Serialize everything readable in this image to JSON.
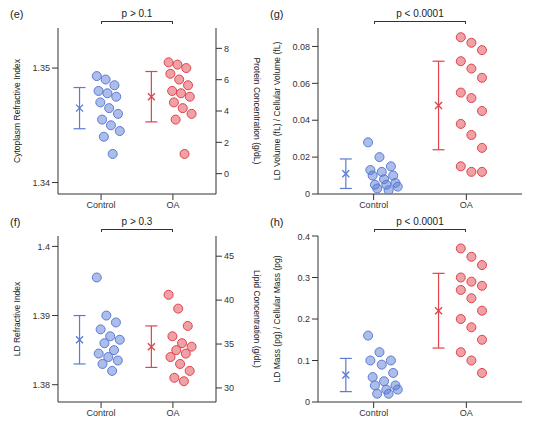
{
  "chart_data": [
    {
      "type": "scatter",
      "title": "(e)",
      "annotation": "p > 0.1",
      "categories": [
        "Control",
        "OA"
      ],
      "colors": [
        "#5b7bd5",
        "#e0434b"
      ],
      "values": [
        [
          1.3493,
          1.349,
          1.3485,
          1.348,
          1.3478,
          1.3475,
          1.347,
          1.3465,
          1.346,
          1.3455,
          1.345,
          1.3445,
          1.344,
          1.3425
        ],
        [
          1.3505,
          1.3503,
          1.35,
          1.3495,
          1.349,
          1.3485,
          1.348,
          1.3478,
          1.3475,
          1.347,
          1.3465,
          1.346,
          1.3455,
          1.3425
        ]
      ],
      "means": [
        1.3465,
        1.3475
      ],
      "errors": [
        0.0018,
        0.0022
      ],
      "ylabel": "Cytoplasm Refractive Index",
      "ylim": [
        1.339,
        1.3535
      ],
      "yticks": [
        1.34,
        1.35
      ],
      "y2label": "Protein Concentration (g/dL)",
      "y2lim": [
        -1.3,
        9.3
      ],
      "y2ticks": [
        0,
        2,
        4,
        6,
        8
      ]
    },
    {
      "type": "scatter",
      "title": "(g)",
      "annotation": "p < 0.0001",
      "categories": [
        "Control",
        "OA"
      ],
      "colors": [
        "#5b7bd5",
        "#e0434b"
      ],
      "values": [
        [
          0.028,
          0.02,
          0.015,
          0.013,
          0.012,
          0.01,
          0.01,
          0.008,
          0.006,
          0.005,
          0.005,
          0.004,
          0.003,
          0.002
        ],
        [
          0.085,
          0.082,
          0.078,
          0.072,
          0.068,
          0.063,
          0.055,
          0.052,
          0.045,
          0.038,
          0.032,
          0.025,
          0.015,
          0.012,
          0.012
        ]
      ],
      "means": [
        0.011,
        0.048
      ],
      "errors": [
        0.008,
        0.024
      ],
      "ylabel": "LD Volume (fL) / Cellular Volume (fL)",
      "ylim": [
        0,
        0.09
      ],
      "yticks": [
        0,
        0.02,
        0.04,
        0.06,
        0.08
      ]
    },
    {
      "type": "scatter",
      "title": "(f)",
      "annotation": "p > 0.3",
      "categories": [
        "Control",
        "OA"
      ],
      "colors": [
        "#5b7bd5",
        "#e0434b"
      ],
      "values": [
        [
          1.3955,
          1.39,
          1.389,
          1.388,
          1.387,
          1.3865,
          1.386,
          1.385,
          1.3845,
          1.384,
          1.3835,
          1.383,
          1.382
        ],
        [
          1.393,
          1.391,
          1.3885,
          1.387,
          1.386,
          1.3855,
          1.385,
          1.3845,
          1.384,
          1.383,
          1.382,
          1.381,
          1.3805
        ]
      ],
      "means": [
        1.3865,
        1.3855
      ],
      "errors": [
        0.0035,
        0.003
      ],
      "ylabel": "LD Refractive Index",
      "ylim": [
        1.3775,
        1.4015
      ],
      "yticks": [
        1.38,
        1.39,
        1.4
      ],
      "y2label": "Lipid Concentration (g/dL)",
      "y2lim": [
        28.4,
        47.3
      ],
      "y2ticks": [
        30,
        35,
        40,
        45
      ]
    },
    {
      "type": "scatter",
      "title": "(h)",
      "annotation": "p < 0.0001",
      "categories": [
        "Control",
        "OA"
      ],
      "colors": [
        "#5b7bd5",
        "#e0434b"
      ],
      "values": [
        [
          0.16,
          0.12,
          0.1,
          0.1,
          0.09,
          0.07,
          0.06,
          0.05,
          0.04,
          0.04,
          0.03,
          0.03,
          0.02,
          0.02
        ],
        [
          0.37,
          0.35,
          0.33,
          0.3,
          0.29,
          0.28,
          0.27,
          0.25,
          0.22,
          0.2,
          0.18,
          0.15,
          0.12,
          0.1,
          0.07
        ]
      ],
      "means": [
        0.065,
        0.22
      ],
      "errors": [
        0.04,
        0.09
      ],
      "ylabel": "LD Mass (pg) / Cellular Mass (pg)",
      "ylim": [
        0,
        0.4
      ],
      "yticks": [
        0,
        0.1,
        0.2,
        0.3,
        0.4
      ]
    }
  ]
}
